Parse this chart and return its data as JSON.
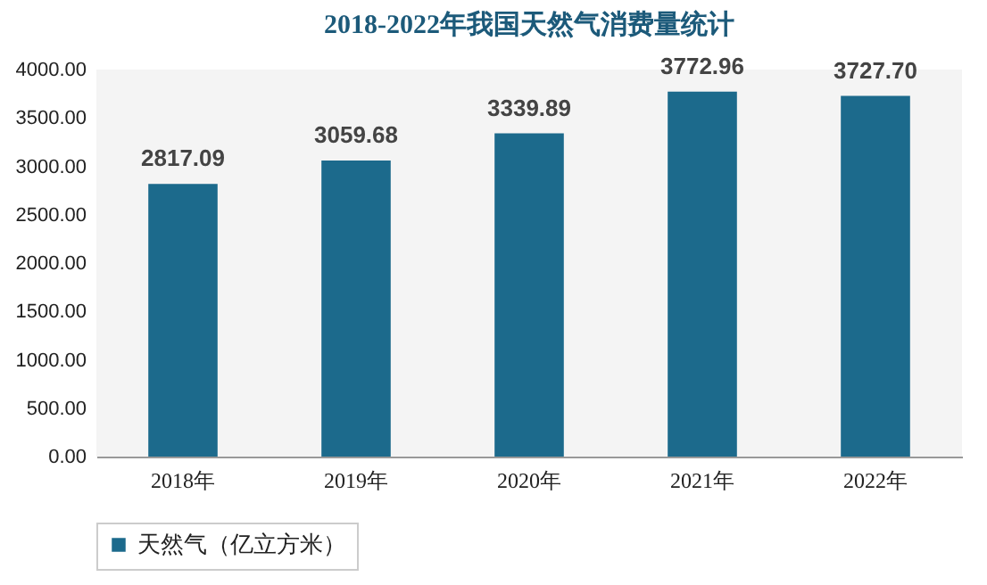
{
  "chart_data": {
    "type": "bar",
    "title": "2018-2022年我国天然气消费量统计",
    "categories": [
      "2018年",
      "2019年",
      "2020年",
      "2021年",
      "2022年"
    ],
    "series": [
      {
        "name": "天然气（亿立方米）",
        "color": "#1c6a8c",
        "values": [
          2817.09,
          3059.68,
          3339.89,
          3772.96,
          3727.7
        ]
      }
    ],
    "ylim": [
      0,
      4000
    ],
    "yticks": [
      {
        "value": 0,
        "label": "0.00"
      },
      {
        "value": 500,
        "label": "500.00"
      },
      {
        "value": 1000,
        "label": "1000.00"
      },
      {
        "value": 1500,
        "label": "1500.00"
      },
      {
        "value": 2000,
        "label": "2000.00"
      },
      {
        "value": 2500,
        "label": "2500.00"
      },
      {
        "value": 3000,
        "label": "3000.00"
      },
      {
        "value": 3500,
        "label": "3500.00"
      },
      {
        "value": 4000,
        "label": "4000.00"
      }
    ],
    "value_labels": [
      "2817.09",
      "3059.68",
      "3339.89",
      "3772.96",
      "3727.70"
    ],
    "grid": false,
    "legend": "bottom"
  }
}
